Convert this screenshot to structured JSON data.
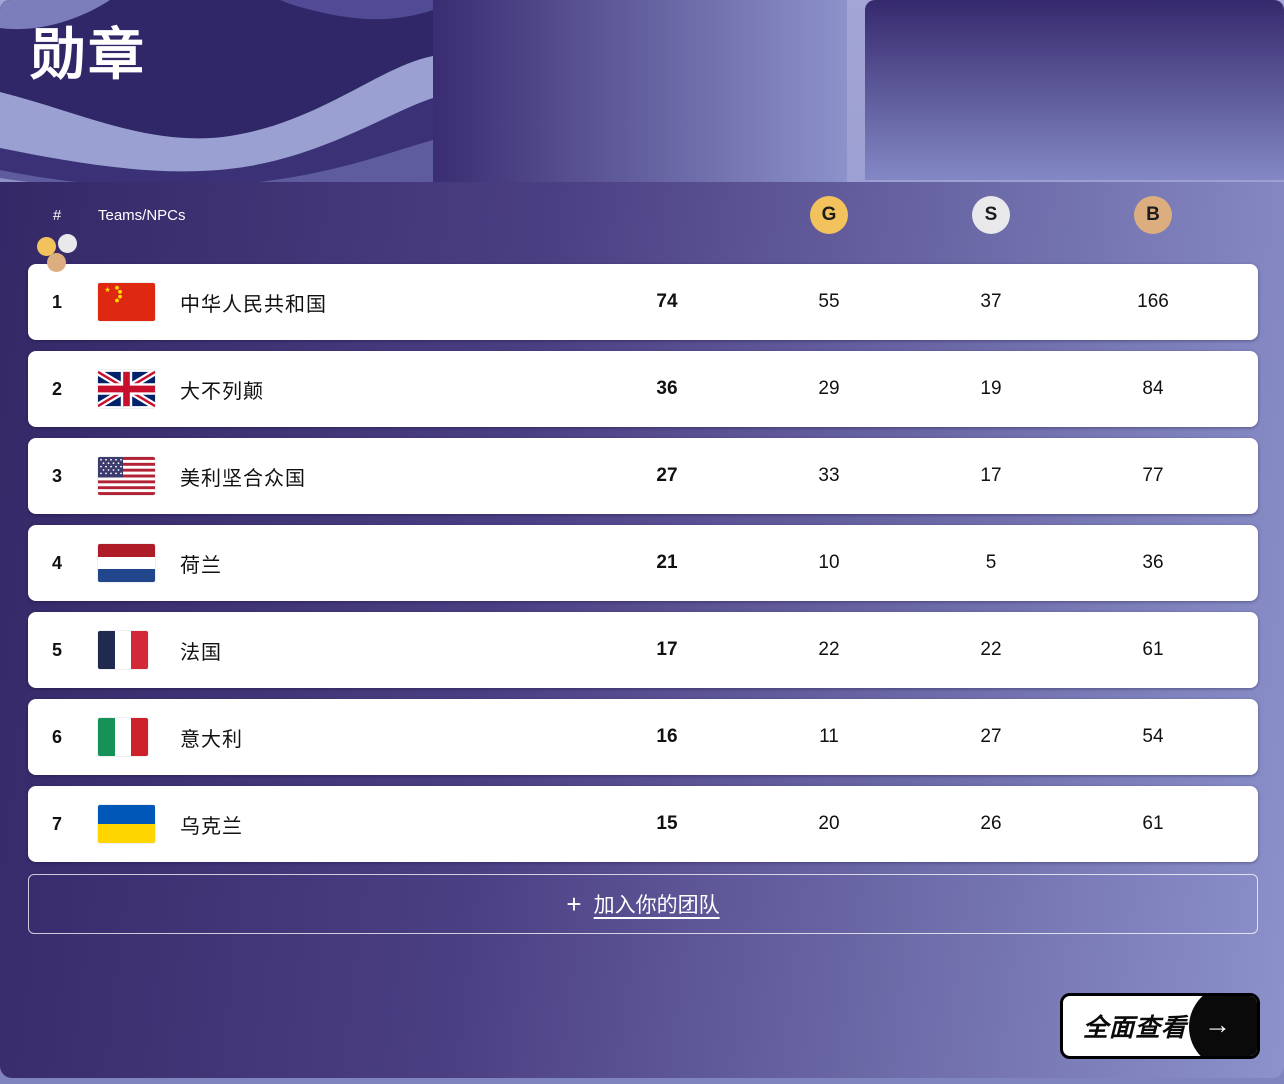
{
  "title": "勋章",
  "table": {
    "rank_header": "#",
    "teams_header": "Teams/NPCs",
    "gold_header": "G",
    "silver_header": "S",
    "bronze_header": "B",
    "total_header_icon": "medal-cluster-icon",
    "rows": [
      {
        "rank": "1",
        "country": "中华人民共和国",
        "flag": "cn",
        "gold": "74",
        "silver": "55",
        "bronze": "37",
        "total": "166"
      },
      {
        "rank": "2",
        "country": "大不列颠",
        "flag": "gb",
        "gold": "36",
        "silver": "29",
        "bronze": "19",
        "total": "84"
      },
      {
        "rank": "3",
        "country": "美利坚合众国",
        "flag": "us",
        "gold": "27",
        "silver": "33",
        "bronze": "17",
        "total": "77"
      },
      {
        "rank": "4",
        "country": "荷兰",
        "flag": "nl",
        "gold": "21",
        "silver": "10",
        "bronze": "5",
        "total": "36"
      },
      {
        "rank": "5",
        "country": "法国",
        "flag": "fr",
        "gold": "17",
        "silver": "22",
        "bronze": "22",
        "total": "61"
      },
      {
        "rank": "6",
        "country": "意大利",
        "flag": "it",
        "gold": "16",
        "silver": "11",
        "bronze": "27",
        "total": "54"
      },
      {
        "rank": "7",
        "country": "乌克兰",
        "flag": "ua",
        "gold": "15",
        "silver": "20",
        "bronze": "26",
        "total": "61"
      }
    ]
  },
  "join_button": {
    "plus": "+",
    "label": "加入你的团队"
  },
  "view_all": {
    "label": "全面查看",
    "arrow": "→"
  },
  "colors": {
    "gold": "#f2c35c",
    "silver": "#e9e9ec",
    "bronze": "#dcae7f",
    "card_dark": "#352867",
    "card_light": "#8c92cb"
  }
}
